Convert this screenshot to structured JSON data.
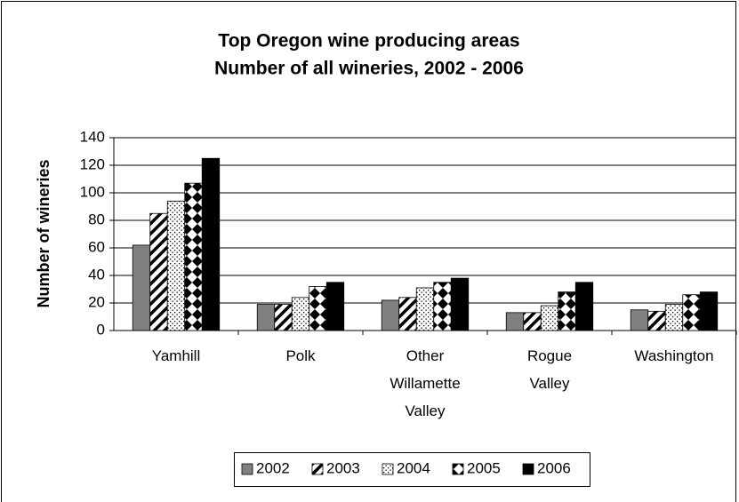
{
  "chart_data": {
    "type": "bar",
    "title": "Top Oregon wine producing areas",
    "subtitle": "Number of all wineries, 2002 - 2006",
    "y_label": "Number of wineries",
    "categories": [
      "Yamhill",
      "Polk",
      "Other Willamette Valley",
      "Rogue Valley",
      "Washington"
    ],
    "series": [
      {
        "name": "2002",
        "color": "#808080",
        "pattern": "solid",
        "values": [
          62,
          19,
          22,
          13,
          15
        ]
      },
      {
        "name": "2003",
        "color": "#000000",
        "pattern": "diagonal",
        "values": [
          85,
          19,
          24,
          13,
          14
        ]
      },
      {
        "name": "2004",
        "color": "#000000",
        "pattern": "dots",
        "values": [
          94,
          24,
          31,
          18,
          19
        ]
      },
      {
        "name": "2005",
        "color": "#000000",
        "pattern": "diamonds",
        "values": [
          107,
          32,
          35,
          28,
          26
        ]
      },
      {
        "name": "2006",
        "color": "#000000",
        "pattern": "solid",
        "values": [
          125,
          35,
          38,
          35,
          28
        ]
      }
    ],
    "ylim": [
      0,
      140
    ],
    "yticks": [
      0,
      20,
      40,
      60,
      80,
      100,
      120,
      140
    ],
    "grid": true,
    "legend": "bottom"
  }
}
